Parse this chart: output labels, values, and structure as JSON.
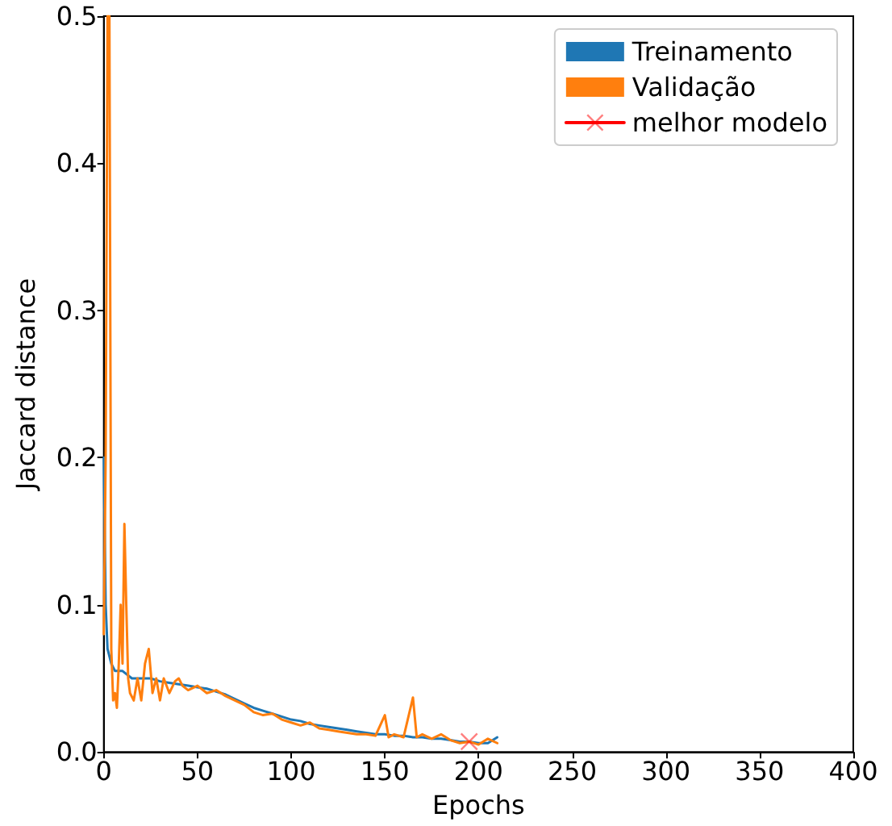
{
  "chart_data": {
    "type": "line",
    "xlabel": "Epochs",
    "ylabel": "Jaccard distance",
    "xlim": [
      0,
      400
    ],
    "xticks": [
      0,
      50,
      100,
      150,
      200,
      250,
      300,
      350,
      400
    ],
    "ylim": [
      0,
      0.5
    ],
    "yticks": [
      {
        "value": 0,
        "label": "0.0"
      },
      0.1,
      0.2,
      0.3,
      0.4,
      0.5
    ],
    "grid": false,
    "legend": "top right",
    "line_style": "solid",
    "series": [
      {
        "name": "Treinamento",
        "color": "#1f77b4",
        "marker": "none",
        "x": [
          0,
          1,
          2,
          4,
          6,
          10,
          15,
          20,
          25,
          30,
          35,
          40,
          45,
          50,
          55,
          60,
          65,
          70,
          75,
          80,
          85,
          90,
          95,
          100,
          105,
          110,
          115,
          120,
          125,
          130,
          135,
          140,
          145,
          150,
          155,
          160,
          165,
          170,
          175,
          180,
          185,
          190,
          195,
          200,
          205,
          210
        ],
        "values": [
          0.2,
          0.1,
          0.07,
          0.06,
          0.055,
          0.055,
          0.05,
          0.05,
          0.05,
          0.048,
          0.047,
          0.046,
          0.045,
          0.044,
          0.043,
          0.041,
          0.039,
          0.036,
          0.033,
          0.03,
          0.028,
          0.026,
          0.024,
          0.022,
          0.021,
          0.019,
          0.018,
          0.017,
          0.016,
          0.015,
          0.014,
          0.013,
          0.012,
          0.012,
          0.011,
          0.011,
          0.01,
          0.01,
          0.009,
          0.009,
          0.008,
          0.007,
          0.007,
          0.006,
          0.006,
          0.01
        ]
      },
      {
        "name": "Validação",
        "color": "#ff7f0e",
        "marker": "none",
        "x": [
          0,
          1,
          2,
          3,
          4,
          5,
          6,
          7,
          8,
          9,
          10,
          11,
          12,
          13,
          14,
          16,
          18,
          20,
          22,
          24,
          26,
          28,
          30,
          32,
          35,
          38,
          40,
          42,
          45,
          50,
          55,
          60,
          65,
          70,
          75,
          80,
          85,
          90,
          95,
          100,
          105,
          110,
          115,
          120,
          125,
          130,
          135,
          140,
          145,
          150,
          152,
          155,
          160,
          165,
          167,
          170,
          175,
          180,
          185,
          190,
          195,
          200,
          205,
          210
        ],
        "values": [
          0.08,
          0.2,
          0.5,
          0.5,
          0.07,
          0.035,
          0.04,
          0.03,
          0.06,
          0.1,
          0.06,
          0.155,
          0.1,
          0.05,
          0.04,
          0.035,
          0.05,
          0.035,
          0.06,
          0.07,
          0.04,
          0.05,
          0.035,
          0.05,
          0.04,
          0.048,
          0.05,
          0.045,
          0.042,
          0.045,
          0.04,
          0.042,
          0.038,
          0.035,
          0.032,
          0.027,
          0.025,
          0.026,
          0.022,
          0.02,
          0.018,
          0.02,
          0.016,
          0.015,
          0.014,
          0.013,
          0.012,
          0.012,
          0.011,
          0.025,
          0.01,
          0.012,
          0.01,
          0.037,
          0.01,
          0.012,
          0.009,
          0.012,
          0.008,
          0.006,
          0.007,
          0.005,
          0.009,
          0.006
        ]
      },
      {
        "name": "melhor modelo",
        "color": "#ff0000",
        "marker": "cross",
        "x": [
          195
        ],
        "values": [
          0.007
        ]
      }
    ]
  }
}
